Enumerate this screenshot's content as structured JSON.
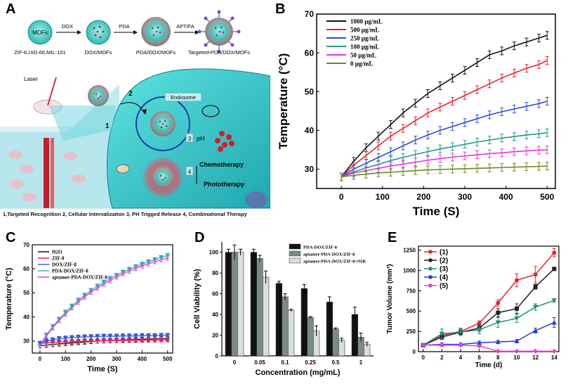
{
  "panelA": {
    "label": "A",
    "steps": [
      {
        "label": "ZIF-8,UiO-66,MIL-101",
        "inner": "MOFs"
      },
      {
        "label": "DOX/MOFs",
        "arrow": "DOX"
      },
      {
        "label": "PDA/DOX/MOFs",
        "arrow": "PDA"
      },
      {
        "label": "Targeted-PDA/DOX/MOFs",
        "arrow": "APT/FA"
      }
    ],
    "laser": "Laser",
    "endosome": "Endosome",
    "ph": "pH",
    "step_numbers": [
      "1",
      "2",
      "3",
      "4"
    ],
    "chemo": "Chemotherapy",
    "photo": "Phototherapy",
    "caption": "1,Targeted Recognition  2, Cellular Internalization 3, PH Trigged Release 4, Combinational Therapy"
  },
  "colors": {
    "black": "#111111",
    "red": "#e8232f",
    "blue": "#2b4fd8",
    "teal": "#1f9a86",
    "magenta": "#e03ad8",
    "olive": "#6b8a1e",
    "c_h2o": "#111111",
    "c_zif": "#e0205a",
    "c_dox": "#3a5ad8",
    "c_pda": "#3ab8b0",
    "c_apt": "#d040d8",
    "bar1": "#111111",
    "bar2": "#7a8a8a",
    "bar3": "#d8e0dc",
    "e1": "#e8232f",
    "e2": "#222222",
    "e3": "#1f8f7a",
    "e4": "#2040d0",
    "e5": "#e83ad8"
  },
  "chart_data": [
    {
      "id": "B",
      "label": "B",
      "type": "line",
      "title": "",
      "xlabel": "Time (S)",
      "ylabel": "Temperature (°C)",
      "xlim": [
        -60,
        520
      ],
      "ylim": [
        25,
        70
      ],
      "xticks": [
        0,
        100,
        200,
        300,
        400,
        500
      ],
      "yticks": [
        30,
        40,
        50,
        60,
        70
      ],
      "x": [
        0,
        30,
        60,
        90,
        120,
        150,
        180,
        210,
        240,
        270,
        300,
        330,
        360,
        390,
        420,
        450,
        480,
        500
      ],
      "series": [
        {
          "name": "1000 μg/mL",
          "values": [
            28,
            32,
            35.5,
            38.5,
            41.5,
            44.5,
            47,
            49.5,
            51.5,
            53.5,
            55.5,
            57.5,
            59.5,
            60.5,
            61.8,
            62.8,
            63.8,
            64.5
          ]
        },
        {
          "name": "500 μg/mL",
          "values": [
            28,
            31,
            33.5,
            36,
            38.5,
            40.5,
            42.5,
            44.5,
            46,
            47.5,
            49,
            50.5,
            52,
            53.5,
            54.8,
            56,
            57,
            58
          ]
        },
        {
          "name": "250 μg/mL",
          "values": [
            28,
            30,
            31.5,
            33,
            34.5,
            36,
            37.5,
            38.8,
            40,
            41,
            42,
            43,
            44,
            44.8,
            45.5,
            46.2,
            46.9,
            47.5
          ]
        },
        {
          "name": "100 μg/mL",
          "values": [
            28,
            29.3,
            30.3,
            31.2,
            32.2,
            33,
            33.8,
            34.5,
            35.2,
            35.8,
            36.4,
            37,
            37.5,
            38,
            38.4,
            38.8,
            39.1,
            39.4
          ]
        },
        {
          "name": "50 μg/mL",
          "values": [
            28,
            29,
            29.6,
            30.2,
            30.8,
            31.3,
            31.8,
            32.3,
            32.7,
            33.1,
            33.4,
            33.7,
            34,
            34.2,
            34.5,
            34.7,
            34.9,
            35
          ]
        },
        {
          "name": "0 μg/mL",
          "values": [
            28,
            28.4,
            28.7,
            29,
            29.2,
            29.4,
            29.6,
            29.8,
            29.9,
            30,
            30.1,
            30.2,
            30.3,
            30.4,
            30.5,
            30.6,
            30.7,
            30.8
          ]
        }
      ]
    },
    {
      "id": "C",
      "label": "C",
      "type": "line",
      "xlabel": "Time (S)",
      "ylabel": "Temperature (°C)",
      "xlim": [
        -30,
        520
      ],
      "ylim": [
        25,
        70
      ],
      "xticks": [
        0,
        100,
        200,
        300,
        400,
        500
      ],
      "yticks": [
        30,
        40,
        50,
        60,
        70
      ],
      "x": [
        0,
        25,
        50,
        75,
        100,
        125,
        150,
        175,
        200,
        225,
        250,
        275,
        300,
        325,
        350,
        375,
        400,
        425,
        450,
        475,
        500
      ],
      "series": [
        {
          "name": "H2O",
          "values": [
            28,
            28.3,
            28.6,
            28.8,
            29,
            29.2,
            29.4,
            29.6,
            29.8,
            30,
            30.1,
            30.2,
            30.3,
            30.4,
            30.5,
            30.6,
            30.7,
            30.8,
            30.9,
            31,
            31
          ]
        },
        {
          "name": "ZIF-8",
          "values": [
            29,
            29.2,
            29.4,
            29.5,
            29.6,
            29.7,
            29.8,
            29.9,
            30,
            30,
            30.1,
            30.1,
            30.2,
            30.2,
            30.3,
            30.3,
            30.3,
            30.4,
            30.4,
            30.4,
            30.5
          ]
        },
        {
          "name": "DOX/ZIF-8",
          "values": [
            29,
            30,
            30.5,
            31,
            31.2,
            31.4,
            31.6,
            31.7,
            31.8,
            31.9,
            32,
            32,
            32,
            32.1,
            32.1,
            32.1,
            32.2,
            32.2,
            32.2,
            32.3,
            32.3
          ]
        },
        {
          "name": "PDA-DOX/ZIF-8",
          "values": [
            28,
            32.5,
            36,
            39,
            42,
            44.5,
            47,
            49,
            51,
            52.8,
            54.5,
            56,
            57.3,
            58.6,
            59.8,
            60.9,
            61.9,
            62.9,
            63.8,
            64.7,
            65.5
          ]
        },
        {
          "name": "aptamer-PDA-DOX/ZIF-8",
          "values": [
            28,
            32,
            35.5,
            38.5,
            41.2,
            43.8,
            46.2,
            48.3,
            50.3,
            52,
            53.7,
            55.2,
            56.6,
            57.9,
            59.1,
            60.2,
            61.2,
            62.1,
            63,
            63.8,
            64.5
          ]
        }
      ]
    },
    {
      "id": "D",
      "label": "D",
      "type": "bar",
      "xlabel": "Concentration (mg/mL)",
      "ylabel": "Cell Viability (%)",
      "ylim": [
        0,
        110
      ],
      "yticks": [
        0,
        20,
        40,
        60,
        80,
        100
      ],
      "categories": [
        "0",
        "0.05",
        "0.1",
        "0.25",
        "0.5",
        "1"
      ],
      "series": [
        {
          "name": "PDA-DOX/ZIF-8",
          "values": [
            100,
            100,
            70,
            65,
            52,
            40
          ],
          "errors": [
            3,
            3,
            2,
            4,
            5,
            7
          ]
        },
        {
          "name": "aptamer-PDA-DOX/ZIF-8",
          "values": [
            100,
            94,
            57,
            37,
            26,
            18
          ],
          "errors": [
            7,
            3,
            3,
            1,
            1,
            4
          ]
        },
        {
          "name": "aptamer-PDA-DOX/ZIF-8+NIR",
          "values": [
            100,
            76,
            44,
            24,
            15,
            11
          ],
          "errors": [
            3,
            6,
            1,
            5,
            2,
            2
          ]
        }
      ]
    },
    {
      "id": "E",
      "label": "E",
      "type": "line",
      "xlabel": "Time (d)",
      "ylabel": "Tumor Volume (mm³)",
      "xlim": [
        -0.5,
        14.5
      ],
      "ylim": [
        0,
        1300
      ],
      "xticks": [
        0,
        2,
        4,
        6,
        8,
        10,
        12,
        14
      ],
      "yticks": [
        0,
        250,
        500,
        750,
        1000,
        1250
      ],
      "x": [
        0,
        2,
        4,
        6,
        8,
        10,
        12,
        14
      ],
      "series": [
        {
          "name": "(1)",
          "values": [
            80,
            200,
            250,
            350,
            600,
            880,
            950,
            1220
          ],
          "errors": [
            20,
            30,
            40,
            30,
            40,
            80,
            100,
            50
          ]
        },
        {
          "name": "(2)",
          "values": [
            80,
            180,
            240,
            290,
            480,
            530,
            800,
            1020
          ],
          "errors": [
            20,
            30,
            30,
            40,
            50,
            60,
            30,
            20
          ]
        },
        {
          "name": "(3)",
          "values": [
            80,
            220,
            240,
            270,
            360,
            410,
            550,
            630
          ],
          "errors": [
            20,
            60,
            40,
            50,
            60,
            50,
            40,
            20
          ]
        },
        {
          "name": "(4)",
          "values": [
            80,
            90,
            90,
            110,
            120,
            130,
            260,
            360
          ],
          "errors": [
            15,
            20,
            20,
            20,
            20,
            20,
            30,
            60
          ]
        },
        {
          "name": "(5)",
          "values": [
            80,
            80,
            80,
            70,
            5,
            5,
            5,
            5
          ],
          "errors": [
            10,
            10,
            10,
            10,
            5,
            5,
            5,
            5
          ]
        }
      ]
    }
  ]
}
